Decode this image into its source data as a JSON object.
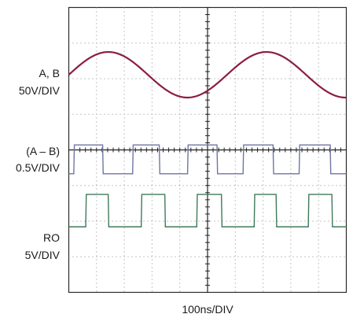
{
  "chart_data": {
    "type": "line",
    "title": "",
    "xlabel": "100ns/DIV",
    "divisions": {
      "x": 10,
      "y": 8
    },
    "grid": true,
    "channels": [
      {
        "key": "ab",
        "label_lines": [
          "A, B",
          "50V/DIV"
        ],
        "color": "#8b1e3f",
        "waveform": "sine",
        "amplitude_div": 0.64,
        "offset_div": 0.0,
        "baseline_div_from_top": 1.89,
        "period_div": 5.7,
        "phase_at_left_deg": 180
      },
      {
        "key": "diff",
        "label_lines": [
          "(A – B)",
          "0.5V/DIV"
        ],
        "color": "#6f76a3",
        "waveform": "square",
        "high_div_from_top": 3.86,
        "low_div_from_top": 4.67,
        "edges_div": [
          0.18,
          1.22,
          2.3,
          3.26,
          4.28,
          5.34,
          6.28,
          7.36,
          8.3,
          9.42
        ],
        "start_level": "low"
      },
      {
        "key": "ro",
        "label_lines": [
          "RO",
          "5V/DIV"
        ],
        "color": "#3f7a5a",
        "waveform": "square",
        "high_div_from_top": 5.25,
        "low_div_from_top": 6.16,
        "edges_div": [
          0.61,
          1.42,
          2.61,
          3.46,
          4.61,
          5.5,
          6.68,
          7.47,
          8.63,
          9.48
        ],
        "start_level": "low"
      }
    ]
  }
}
